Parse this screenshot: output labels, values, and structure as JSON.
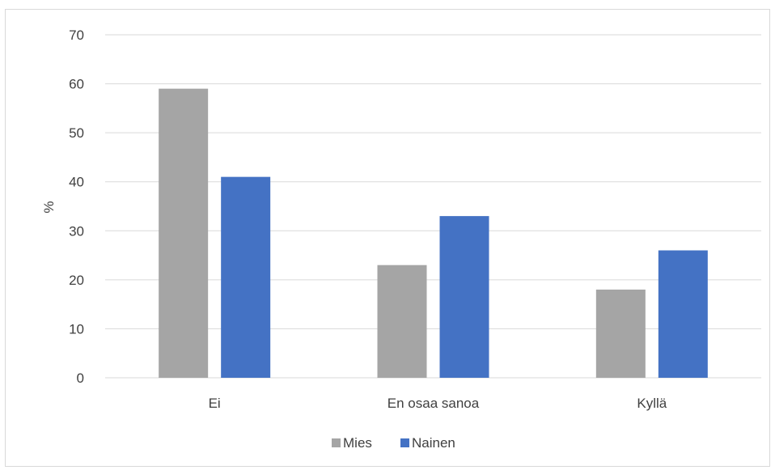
{
  "chart_data": {
    "type": "bar",
    "title": "",
    "xlabel": "",
    "ylabel": "%",
    "ylim": [
      0,
      70
    ],
    "yticks": [
      0,
      10,
      20,
      30,
      40,
      50,
      60,
      70
    ],
    "grid": true,
    "legend_position": "bottom",
    "categories": [
      "Ei",
      "En osaa sanoa",
      "Kyllä"
    ],
    "series": [
      {
        "name": "Mies",
        "values": [
          59,
          23,
          18
        ],
        "color": "#a5a5a5"
      },
      {
        "name": "Nainen",
        "values": [
          41,
          33,
          26
        ],
        "color": "#4472c4"
      }
    ]
  }
}
